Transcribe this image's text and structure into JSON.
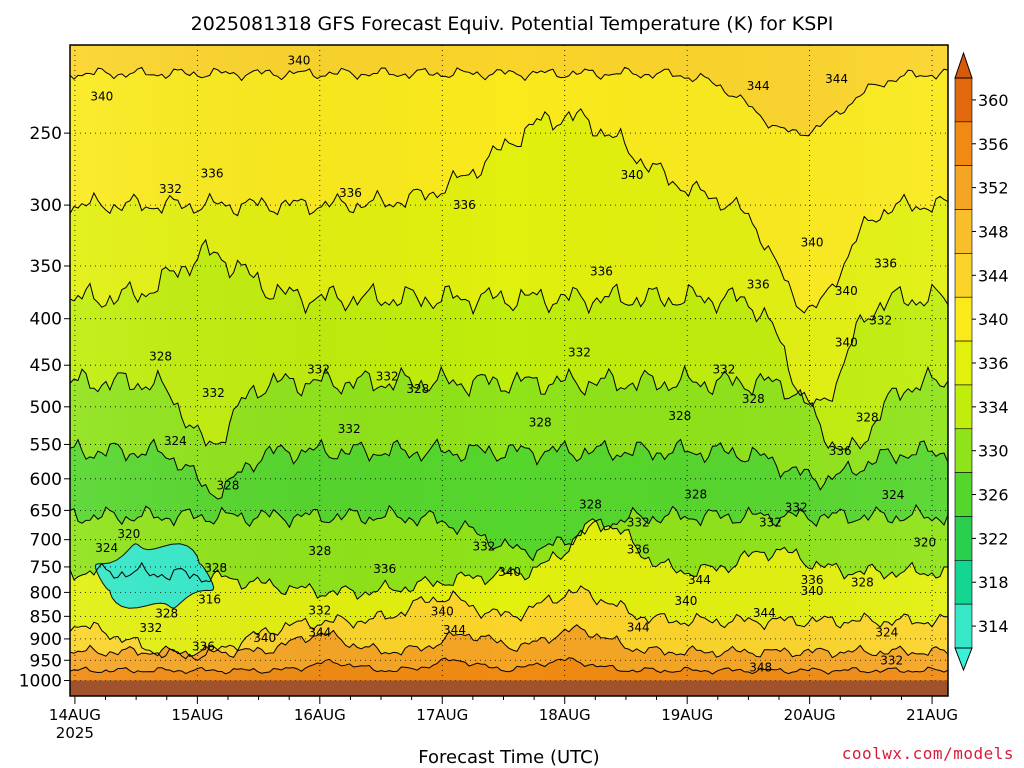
{
  "chart_data": {
    "type": "heatmap",
    "title": "2025081318 GFS Forecast Equiv. Potential Temperature (K) for KSPI",
    "xlabel": "Forecast Time (UTC)",
    "ylabel": "",
    "x_ticks": [
      {
        "label": "14AUG",
        "sublabel": "2025",
        "day": 0
      },
      {
        "label": "15AUG",
        "day": 1
      },
      {
        "label": "16AUG",
        "day": 2
      },
      {
        "label": "17AUG",
        "day": 3
      },
      {
        "label": "18AUG",
        "day": 4
      },
      {
        "label": "19AUG",
        "day": 5
      },
      {
        "label": "20AUG",
        "day": 6
      },
      {
        "label": "21AUG",
        "day": 7
      }
    ],
    "xlim_days": [
      -0.04,
      7.13
    ],
    "y_scale": "log-pressure (reversed)",
    "ylim_hpa": [
      1040,
      200
    ],
    "y_ticks": [
      250,
      300,
      350,
      400,
      450,
      500,
      550,
      600,
      650,
      700,
      750,
      800,
      850,
      900,
      950,
      1000
    ],
    "surface_hpa": 1000,
    "colorbar": {
      "ticks": [
        360,
        356,
        352,
        348,
        344,
        340,
        336,
        334,
        330,
        326,
        322,
        318,
        314
      ],
      "colors": [
        "#e2680e",
        "#f08a12",
        "#f5a524",
        "#f8bf2a",
        "#fbd42a",
        "#faea1c",
        "#e2f00e",
        "#c0ed0b",
        "#8fe319",
        "#55d62c",
        "#2acf4e",
        "#14d690",
        "#34e8c8"
      ]
    },
    "contour_labels": [
      {
        "t": 1.83,
        "p": 208,
        "text": "340"
      },
      {
        "t": 0.22,
        "p": 228,
        "text": "340"
      },
      {
        "t": 5.58,
        "p": 222,
        "text": "344"
      },
      {
        "t": 6.22,
        "p": 218,
        "text": "344"
      },
      {
        "t": 1.12,
        "p": 277,
        "text": "336"
      },
      {
        "t": 0.78,
        "p": 288,
        "text": "332"
      },
      {
        "t": 2.25,
        "p": 291,
        "text": "336"
      },
      {
        "t": 3.18,
        "p": 300,
        "text": "336"
      },
      {
        "t": 4.55,
        "p": 278,
        "text": "340"
      },
      {
        "t": 6.02,
        "p": 330,
        "text": "340"
      },
      {
        "t": 6.62,
        "p": 348,
        "text": "336"
      },
      {
        "t": 4.3,
        "p": 355,
        "text": "336"
      },
      {
        "t": 5.58,
        "p": 367,
        "text": "336"
      },
      {
        "t": 6.3,
        "p": 373,
        "text": "340"
      },
      {
        "t": 6.3,
        "p": 425,
        "text": "340"
      },
      {
        "t": 6.58,
        "p": 402,
        "text": "332"
      },
      {
        "t": 0.7,
        "p": 440,
        "text": "328"
      },
      {
        "t": 1.99,
        "p": 455,
        "text": "332"
      },
      {
        "t": 2.55,
        "p": 463,
        "text": "332"
      },
      {
        "t": 4.12,
        "p": 436,
        "text": "332"
      },
      {
        "t": 5.3,
        "p": 455,
        "text": "332"
      },
      {
        "t": 1.13,
        "p": 483,
        "text": "332"
      },
      {
        "t": 2.8,
        "p": 478,
        "text": "328"
      },
      {
        "t": 5.54,
        "p": 490,
        "text": "328"
      },
      {
        "t": 6.47,
        "p": 514,
        "text": "328"
      },
      {
        "t": 2.24,
        "p": 529,
        "text": "332"
      },
      {
        "t": 3.8,
        "p": 520,
        "text": "328"
      },
      {
        "t": 4.94,
        "p": 512,
        "text": "328"
      },
      {
        "t": 0.82,
        "p": 545,
        "text": "324"
      },
      {
        "t": 6.25,
        "p": 559,
        "text": "336"
      },
      {
        "t": 1.25,
        "p": 610,
        "text": "328"
      },
      {
        "t": 5.07,
        "p": 624,
        "text": "328"
      },
      {
        "t": 6.68,
        "p": 625,
        "text": "324"
      },
      {
        "t": 4.21,
        "p": 640,
        "text": "328"
      },
      {
        "t": 5.89,
        "p": 645,
        "text": "332"
      },
      {
        "t": 4.6,
        "p": 670,
        "text": "332"
      },
      {
        "t": 5.68,
        "p": 670,
        "text": "332"
      },
      {
        "t": 0.44,
        "p": 690,
        "text": "320"
      },
      {
        "t": 6.94,
        "p": 705,
        "text": "320"
      },
      {
        "t": 3.34,
        "p": 712,
        "text": "332"
      },
      {
        "t": 4.6,
        "p": 718,
        "text": "336"
      },
      {
        "t": 0.26,
        "p": 715,
        "text": "324"
      },
      {
        "t": 2.0,
        "p": 720,
        "text": "328"
      },
      {
        "t": 1.15,
        "p": 752,
        "text": "328"
      },
      {
        "t": 2.53,
        "p": 754,
        "text": "336"
      },
      {
        "t": 3.55,
        "p": 760,
        "text": "340"
      },
      {
        "t": 5.1,
        "p": 775,
        "text": "344"
      },
      {
        "t": 6.02,
        "p": 775,
        "text": "336"
      },
      {
        "t": 6.43,
        "p": 780,
        "text": "328"
      },
      {
        "t": 6.02,
        "p": 797,
        "text": "340"
      },
      {
        "t": 1.1,
        "p": 814,
        "text": "316"
      },
      {
        "t": 4.99,
        "p": 818,
        "text": "340"
      },
      {
        "t": 2.0,
        "p": 838,
        "text": "332"
      },
      {
        "t": 3.0,
        "p": 840,
        "text": "340"
      },
      {
        "t": 0.75,
        "p": 844,
        "text": "328"
      },
      {
        "t": 5.63,
        "p": 843,
        "text": "344"
      },
      {
        "t": 0.62,
        "p": 876,
        "text": "332"
      },
      {
        "t": 4.6,
        "p": 874,
        "text": "344"
      },
      {
        "t": 3.1,
        "p": 880,
        "text": "344"
      },
      {
        "t": 2.0,
        "p": 885,
        "text": "344"
      },
      {
        "t": 6.63,
        "p": 885,
        "text": "324"
      },
      {
        "t": 1.55,
        "p": 898,
        "text": "340"
      },
      {
        "t": 1.05,
        "p": 918,
        "text": "336"
      },
      {
        "t": 6.67,
        "p": 950,
        "text": "332"
      },
      {
        "t": 5.6,
        "p": 967,
        "text": "348"
      }
    ]
  },
  "credit": "coolwx.com/models"
}
